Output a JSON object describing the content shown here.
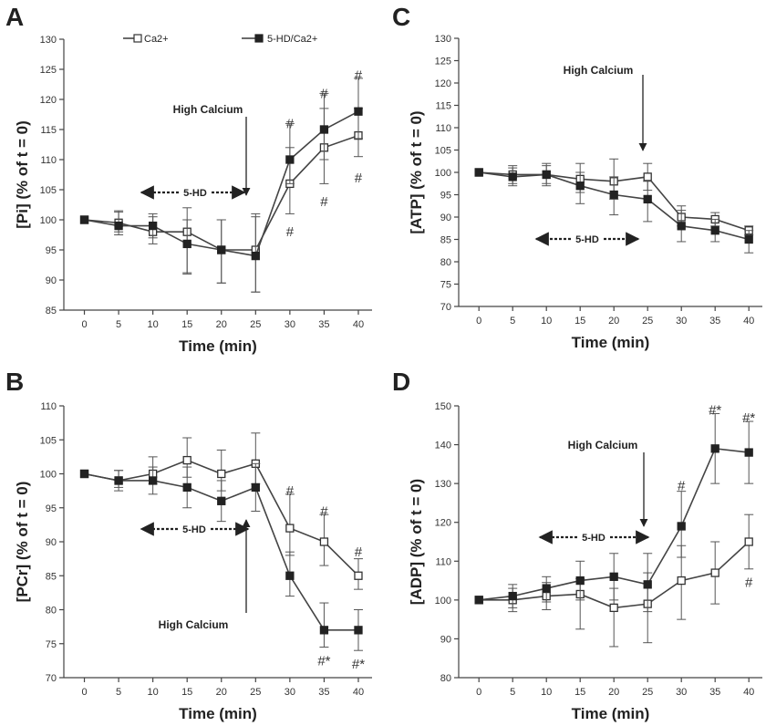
{
  "legend": {
    "series": [
      "Ca2+",
      "5-HD/Ca2+"
    ]
  },
  "chart_data": [
    {
      "id": "A",
      "type": "line",
      "ylabel": "[Pi] (% of t = 0)",
      "xlabel": "Time (min)",
      "x": [
        0,
        5,
        10,
        15,
        20,
        25,
        30,
        35,
        40
      ],
      "xlim": [
        -3,
        42
      ],
      "ylim": [
        85,
        130
      ],
      "yticks_step": 5,
      "series": [
        {
          "name": "Ca2+",
          "marker": "open-square",
          "values": [
            100,
            99.5,
            98,
            98,
            95,
            95,
            106,
            112,
            114
          ],
          "err_up": [
            0,
            1.8,
            2.5,
            4.0,
            5.0,
            6.0,
            6.0,
            6.5,
            4.5
          ],
          "err_down": [
            0,
            1.5,
            2.0,
            6.8,
            5.5,
            7.0,
            5.0,
            6.0,
            3.5
          ]
        },
        {
          "name": "5-HD/Ca2+",
          "marker": "filled-square",
          "values": [
            100,
            99,
            99,
            96,
            95,
            94,
            110,
            115,
            118
          ],
          "err_up": [
            0,
            2.5,
            2.0,
            4.0,
            5.0,
            6.5,
            6.0,
            6.0,
            5.5
          ],
          "err_down": [
            0,
            1.5,
            2.0,
            5.0,
            5.5,
            6.0,
            4.0,
            5.0,
            4.5
          ]
        }
      ],
      "annotations": {
        "arrow_label": "High Calcium",
        "range_label": "5-HD",
        "sig_marks": [
          {
            "x": 30,
            "y": 116,
            "t": "#"
          },
          {
            "x": 35,
            "y": 121,
            "t": "#"
          },
          {
            "x": 40,
            "y": 124,
            "t": "#"
          },
          {
            "x": 30,
            "y": 98,
            "t": "#"
          },
          {
            "x": 35,
            "y": 103,
            "t": "#"
          },
          {
            "x": 40,
            "y": 107,
            "t": "#"
          }
        ]
      }
    },
    {
      "id": "B",
      "type": "line",
      "ylabel": "[PCr] (% of t = 0)",
      "xlabel": "Time (min)",
      "x": [
        0,
        5,
        10,
        15,
        20,
        25,
        30,
        35,
        40
      ],
      "xlim": [
        -3,
        42
      ],
      "ylim": [
        70,
        110
      ],
      "yticks_step": 5,
      "series": [
        {
          "name": "Ca2+",
          "marker": "open-square",
          "values": [
            100,
            99,
            100,
            102,
            100,
            101.5,
            92,
            90,
            85
          ],
          "err_up": [
            0,
            1.5,
            2.5,
            3.3,
            3.5,
            4.5,
            5.0,
            4.0,
            2.5
          ],
          "err_down": [
            0,
            1.0,
            1.5,
            2.5,
            2.5,
            3.0,
            4.0,
            3.5,
            2.0
          ]
        },
        {
          "name": "5-HD/Ca2+",
          "marker": "filled-square",
          "values": [
            100,
            99,
            99,
            98,
            96,
            98,
            85,
            77,
            77
          ],
          "err_up": [
            0,
            1.5,
            2.0,
            3.0,
            3.0,
            3.5,
            3.5,
            4.0,
            3.0
          ],
          "err_down": [
            0,
            1.5,
            2.0,
            3.0,
            3.0,
            3.5,
            3.0,
            2.5,
            3.0
          ]
        }
      ],
      "annotations": {
        "arrow_label": "High Calcium",
        "range_label": "5-HD",
        "sig_marks": [
          {
            "x": 30,
            "y": 97.5,
            "t": "#"
          },
          {
            "x": 35,
            "y": 94.5,
            "t": "#"
          },
          {
            "x": 40,
            "y": 88.5,
            "t": "#"
          },
          {
            "x": 35,
            "y": 72.5,
            "t": "#*"
          },
          {
            "x": 40,
            "y": 72,
            "t": "#*"
          }
        ]
      }
    },
    {
      "id": "C",
      "type": "line",
      "ylabel": "[ATP] (% of t = 0)",
      "xlabel": "Time (min)",
      "x": [
        0,
        5,
        10,
        15,
        20,
        25,
        30,
        35,
        40
      ],
      "xlim": [
        -3,
        42
      ],
      "ylim": [
        70,
        130
      ],
      "yticks_step": 5,
      "series": [
        {
          "name": "Ca2+",
          "marker": "open-square",
          "values": [
            100,
            99.5,
            99.5,
            98.5,
            98,
            99,
            90,
            89.5,
            87
          ],
          "err_up": [
            0,
            2.0,
            2.5,
            3.5,
            5.0,
            3.0,
            2.5,
            1.5,
            1.0
          ],
          "err_down": [
            0,
            2.0,
            2.0,
            3.0,
            4.0,
            3.0,
            2.0,
            1.5,
            1.0
          ]
        },
        {
          "name": "5-HD/Ca2+",
          "marker": "filled-square",
          "values": [
            100,
            99,
            99.5,
            97,
            95,
            94,
            88,
            87,
            85
          ],
          "err_up": [
            0,
            2.0,
            2.0,
            3.0,
            4.0,
            4.0,
            3.5,
            2.5,
            2.0
          ],
          "err_down": [
            0,
            2.0,
            2.5,
            4.0,
            4.5,
            5.0,
            3.5,
            2.5,
            3.0
          ]
        }
      ],
      "annotations": {
        "arrow_label": "High Calcium",
        "range_label": "5-HD",
        "sig_marks": []
      }
    },
    {
      "id": "D",
      "type": "line",
      "ylabel": "[ADP] (% of t = 0)",
      "xlabel": "Time (min)",
      "x": [
        0,
        5,
        10,
        15,
        20,
        25,
        30,
        35,
        40
      ],
      "xlim": [
        -3,
        42
      ],
      "ylim": [
        80,
        150
      ],
      "yticks_step": 10,
      "series": [
        {
          "name": "Ca2+",
          "marker": "open-square",
          "values": [
            100,
            100,
            101,
            101.5,
            98,
            99,
            105,
            107,
            115
          ],
          "err_up": [
            0,
            3.0,
            3.5,
            4.0,
            5.0,
            8.0,
            9.0,
            8.0,
            7.0
          ],
          "err_down": [
            0,
            3.0,
            3.5,
            9.0,
            10.0,
            10.0,
            10.0,
            8.0,
            7.0
          ]
        },
        {
          "name": "5-HD/Ca2+",
          "marker": "filled-square",
          "values": [
            100,
            101,
            103,
            105,
            106,
            104,
            119,
            139,
            138
          ],
          "err_up": [
            0,
            3.0,
            3.0,
            5.0,
            6.0,
            8.0,
            9.0,
            9.0,
            8.0
          ],
          "err_down": [
            0,
            3.0,
            3.5,
            5.0,
            6.0,
            7.0,
            8.0,
            9.0,
            8.0
          ]
        }
      ],
      "annotations": {
        "arrow_label": "High Calcium",
        "range_label": "5-HD",
        "sig_marks": [
          {
            "x": 30,
            "y": 129.5,
            "t": "#"
          },
          {
            "x": 35,
            "y": 149,
            "t": "#*"
          },
          {
            "x": 40,
            "y": 147,
            "t": "#*"
          },
          {
            "x": 40,
            "y": 104.5,
            "t": "#"
          }
        ]
      }
    }
  ]
}
